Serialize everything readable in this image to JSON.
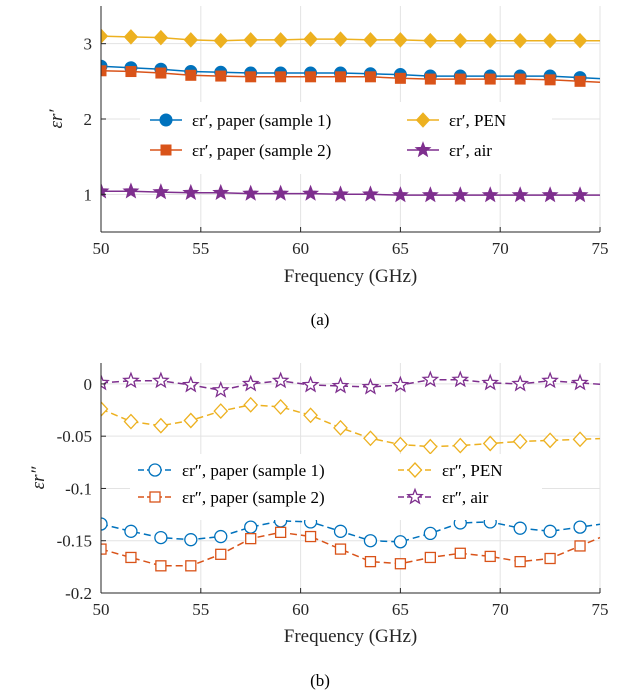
{
  "chart_data": [
    {
      "type": "line",
      "caption": "(a)",
      "xlabel": "Frequency (GHz)",
      "ylabel": "εr′",
      "xlim": [
        50,
        75
      ],
      "ylim": [
        0.5,
        3.5
      ],
      "xticks": [
        50,
        55,
        60,
        65,
        70,
        75
      ],
      "yticks": [
        1,
        2,
        3
      ],
      "ytick_labels": [
        "1",
        "2",
        "3"
      ],
      "grid": true,
      "legend_position": "center",
      "legend_columns": 2,
      "x": [
        50,
        51.5,
        53,
        54.5,
        56,
        57.5,
        59,
        60.5,
        62,
        63.5,
        65,
        66.5,
        68,
        69.5,
        71,
        72.5,
        74
      ],
      "series": [
        {
          "name": "εr′, paper (sample 1)",
          "color": "#0072BD",
          "marker": "circle",
          "filled": true,
          "values": [
            2.7,
            2.68,
            2.66,
            2.63,
            2.62,
            2.61,
            2.61,
            2.61,
            2.61,
            2.6,
            2.59,
            2.57,
            2.57,
            2.57,
            2.57,
            2.57,
            2.55
          ]
        },
        {
          "name": "εr′, PEN",
          "color": "#EDB120",
          "marker": "diamond",
          "filled": true,
          "values": [
            3.1,
            3.09,
            3.08,
            3.05,
            3.04,
            3.05,
            3.05,
            3.06,
            3.06,
            3.05,
            3.05,
            3.04,
            3.04,
            3.04,
            3.04,
            3.04,
            3.04
          ]
        },
        {
          "name": "εr′, paper (sample 2)",
          "color": "#D95319",
          "marker": "square",
          "filled": true,
          "values": [
            2.64,
            2.63,
            2.61,
            2.58,
            2.57,
            2.56,
            2.56,
            2.56,
            2.56,
            2.56,
            2.54,
            2.53,
            2.53,
            2.53,
            2.53,
            2.52,
            2.5
          ]
        },
        {
          "name": "εr′, air",
          "color": "#7E2F8E",
          "marker": "star",
          "filled": true,
          "values": [
            1.04,
            1.04,
            1.03,
            1.02,
            1.02,
            1.01,
            1.01,
            1.01,
            1.0,
            1.0,
            0.99,
            0.99,
            0.99,
            0.99,
            0.99,
            0.99,
            0.99
          ]
        }
      ]
    },
    {
      "type": "line",
      "caption": "(b)",
      "xlabel": "Frequency (GHz)",
      "ylabel": "εr″",
      "xlim": [
        50,
        75
      ],
      "ylim": [
        -0.2,
        0.02
      ],
      "xticks": [
        50,
        55,
        60,
        65,
        70,
        75
      ],
      "yticks": [
        0,
        -0.05,
        -0.1,
        -0.15,
        -0.2
      ],
      "ytick_labels": [
        "0",
        "-0.05",
        "-0.1",
        "-0.15",
        "-0.2"
      ],
      "grid": true,
      "legend_position": "center",
      "legend_columns": 2,
      "x": [
        50,
        51.5,
        53,
        54.5,
        56,
        57.5,
        59,
        60.5,
        62,
        63.5,
        65,
        66.5,
        68,
        69.5,
        71,
        72.5,
        74
      ],
      "series": [
        {
          "name": "εr″, paper (sample 1)",
          "color": "#0072BD",
          "marker": "circle",
          "filled": false,
          "dashed": true,
          "values": [
            -0.134,
            -0.141,
            -0.147,
            -0.149,
            -0.146,
            -0.137,
            -0.131,
            -0.132,
            -0.141,
            -0.15,
            -0.151,
            -0.143,
            -0.133,
            -0.132,
            -0.138,
            -0.141,
            -0.137
          ]
        },
        {
          "name": "εr″, PEN",
          "color": "#EDB120",
          "marker": "diamond",
          "filled": false,
          "dashed": true,
          "values": [
            -0.024,
            -0.036,
            -0.04,
            -0.035,
            -0.026,
            -0.02,
            -0.022,
            -0.03,
            -0.042,
            -0.052,
            -0.058,
            -0.06,
            -0.059,
            -0.057,
            -0.055,
            -0.054,
            -0.053
          ]
        },
        {
          "name": "εr″, paper (sample 2)",
          "color": "#D95319",
          "marker": "square",
          "filled": false,
          "dashed": true,
          "values": [
            -0.158,
            -0.166,
            -0.174,
            -0.174,
            -0.163,
            -0.148,
            -0.142,
            -0.146,
            -0.158,
            -0.17,
            -0.172,
            -0.166,
            -0.162,
            -0.165,
            -0.17,
            -0.167,
            -0.155
          ]
        },
        {
          "name": "εr″, air",
          "color": "#7E2F8E",
          "marker": "star",
          "filled": false,
          "dashed": true,
          "values": [
            0.001,
            0.003,
            0.003,
            -0.001,
            -0.006,
            0.0,
            0.003,
            -0.001,
            -0.002,
            -0.003,
            -0.001,
            0.004,
            0.004,
            0.001,
            0.0,
            0.003,
            0.001
          ]
        }
      ]
    }
  ]
}
